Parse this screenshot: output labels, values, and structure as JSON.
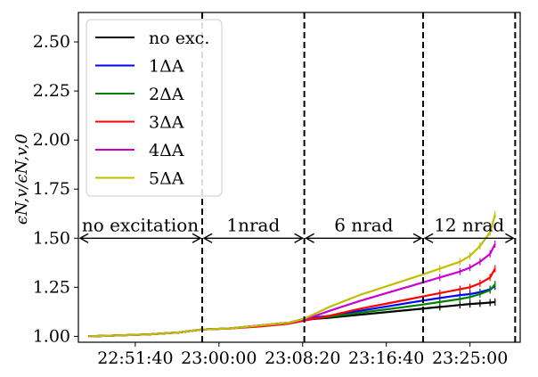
{
  "chart_data": {
    "type": "line",
    "title": "",
    "xlabel": "",
    "ylabel": "ϵN,v/ϵN,v,0",
    "xlim": [
      "22:46:00",
      "23:30:00"
    ],
    "ylim": [
      0.97,
      2.65
    ],
    "grid": false,
    "legend_position": "top-left",
    "xticks": [
      "22:51:40",
      "23:00:00",
      "23:08:20",
      "23:16:40",
      "23:25:00"
    ],
    "yticks": [
      "1.00",
      "1.25",
      "1.50",
      "1.75",
      "2.00",
      "2.25",
      "2.50"
    ],
    "vlines": [
      "22:58:20",
      "23:08:30",
      "23:20:20",
      "23:29:30"
    ],
    "annotations": [
      {
        "text": "no excitation",
        "from": "22:46:00",
        "to": "22:58:20",
        "y": 1.5
      },
      {
        "text": "1nrad",
        "from": "22:58:20",
        "to": "23:08:30",
        "y": 1.5
      },
      {
        "text": "6 nrad",
        "from": "23:08:30",
        "to": "23:20:20",
        "y": 1.5
      },
      {
        "text": "12 nrad",
        "from": "23:20:20",
        "to": "23:29:30",
        "y": 1.5
      }
    ],
    "x": [
      "22:47:00",
      "22:50:00",
      "22:53:00",
      "22:56:00",
      "22:58:20",
      "23:01:00",
      "23:04:00",
      "23:07:00",
      "23:08:30",
      "23:11:00",
      "23:14:00",
      "23:17:00",
      "23:20:00",
      "23:22:00",
      "23:24:00",
      "23:25:00",
      "23:26:00",
      "23:27:00",
      "23:27:30"
    ],
    "series": [
      {
        "name": "no exc.",
        "color": "#000000",
        "values": [
          1.0,
          1.005,
          1.01,
          1.02,
          1.035,
          1.04,
          1.055,
          1.07,
          1.085,
          1.095,
          1.11,
          1.125,
          1.14,
          1.15,
          1.16,
          1.165,
          1.168,
          1.172,
          1.175
        ]
      },
      {
        "name": "1ΔA",
        "color": "#0000ff",
        "values": [
          1.0,
          1.005,
          1.01,
          1.02,
          1.035,
          1.04,
          1.055,
          1.07,
          1.09,
          1.105,
          1.13,
          1.155,
          1.18,
          1.195,
          1.21,
          1.215,
          1.225,
          1.24,
          1.255
        ]
      },
      {
        "name": "2ΔA",
        "color": "#008000",
        "values": [
          1.0,
          1.005,
          1.01,
          1.02,
          1.035,
          1.04,
          1.055,
          1.07,
          1.085,
          1.1,
          1.12,
          1.14,
          1.16,
          1.175,
          1.19,
          1.2,
          1.215,
          1.235,
          1.265
        ]
      },
      {
        "name": "3ΔA",
        "color": "#ff0000",
        "values": [
          1.0,
          1.005,
          1.01,
          1.02,
          1.035,
          1.04,
          1.05,
          1.065,
          1.08,
          1.105,
          1.14,
          1.17,
          1.2,
          1.22,
          1.24,
          1.25,
          1.27,
          1.3,
          1.345
        ]
      },
      {
        "name": "4ΔA",
        "color": "#cc00cc",
        "values": [
          1.0,
          1.005,
          1.01,
          1.02,
          1.035,
          1.04,
          1.055,
          1.07,
          1.085,
          1.13,
          1.18,
          1.225,
          1.27,
          1.3,
          1.33,
          1.35,
          1.38,
          1.42,
          1.47
        ]
      },
      {
        "name": "5ΔA",
        "color": "#bfbf00",
        "values": [
          1.0,
          1.005,
          1.01,
          1.02,
          1.035,
          1.04,
          1.055,
          1.07,
          1.09,
          1.15,
          1.21,
          1.26,
          1.31,
          1.345,
          1.38,
          1.41,
          1.46,
          1.53,
          1.62
        ]
      }
    ]
  }
}
